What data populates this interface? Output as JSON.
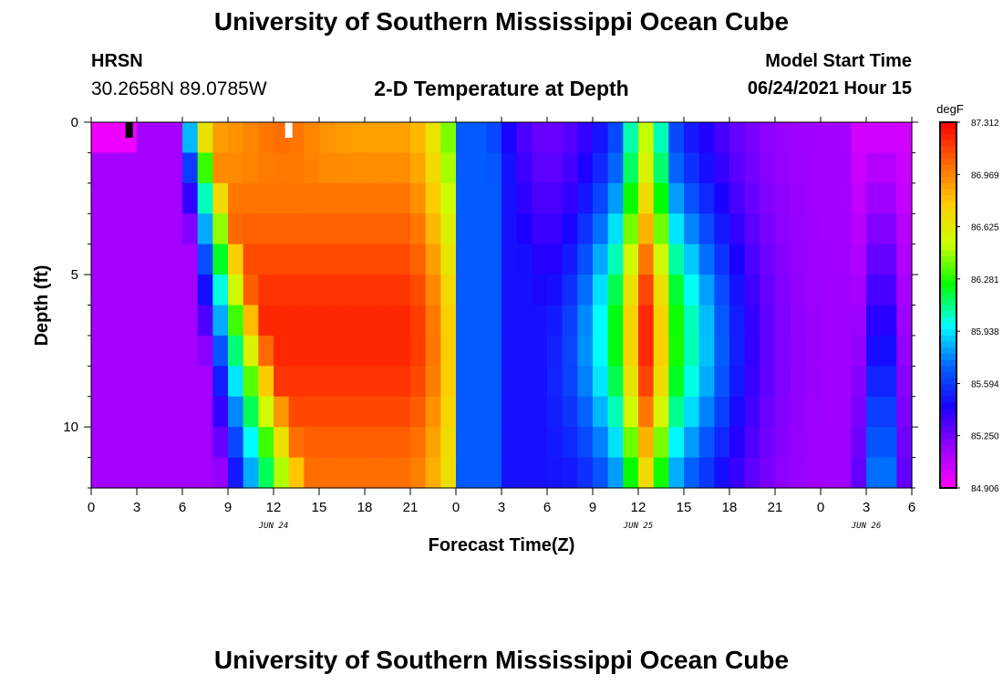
{
  "header": {
    "title": "University of Southern Mississippi Ocean Cube",
    "station": "HRSN",
    "coordinates": "30.2658N  89.0785W",
    "subtitle": "2-D Temperature at Depth",
    "model_start_label": "Model Start Time",
    "model_start_value": "06/24/2021 Hour 15"
  },
  "footer": {
    "title": "University of Southern Mississippi Ocean Cube"
  },
  "chart_data": {
    "type": "heatmap",
    "xlabel": "Forecast Time(Z)",
    "ylabel": "Depth (ft)",
    "x_hours_range": [
      0,
      54
    ],
    "y_depth_range": [
      0,
      12
    ],
    "y_inverted": true,
    "x_tick_labels": [
      "0",
      "3",
      "6",
      "9",
      "12",
      "15",
      "18",
      "21",
      "0",
      "3",
      "6",
      "9",
      "12",
      "15",
      "18",
      "21",
      "0",
      "3",
      "6"
    ],
    "y_tick_labels": [
      "0",
      "5",
      "10"
    ],
    "y_tick_values": [
      0,
      5,
      10
    ],
    "day_labels": [
      {
        "label": "JUN 24",
        "hour": 12
      },
      {
        "label": "JUN 25",
        "hour": 36
      },
      {
        "label": "JUN 26",
        "hour": 51
      }
    ],
    "colorbar": {
      "unit": "degF",
      "min": 84.906,
      "max": 87.312,
      "tick_labels": [
        "87.312",
        "86.969",
        "86.625",
        "86.281",
        "85.938",
        "85.594",
        "85.250",
        "84.906"
      ],
      "colors": [
        "#ff00ff",
        "#9900ff",
        "#1a00ff",
        "#0066ff",
        "#00ffff",
        "#00ff00",
        "#ccff00",
        "#ffcc00",
        "#ff6600",
        "#ff0000"
      ]
    },
    "markers": [
      {
        "hour": 2.5,
        "color": "#000000"
      },
      {
        "hour": 13,
        "color": "#ffffff"
      }
    ]
  }
}
